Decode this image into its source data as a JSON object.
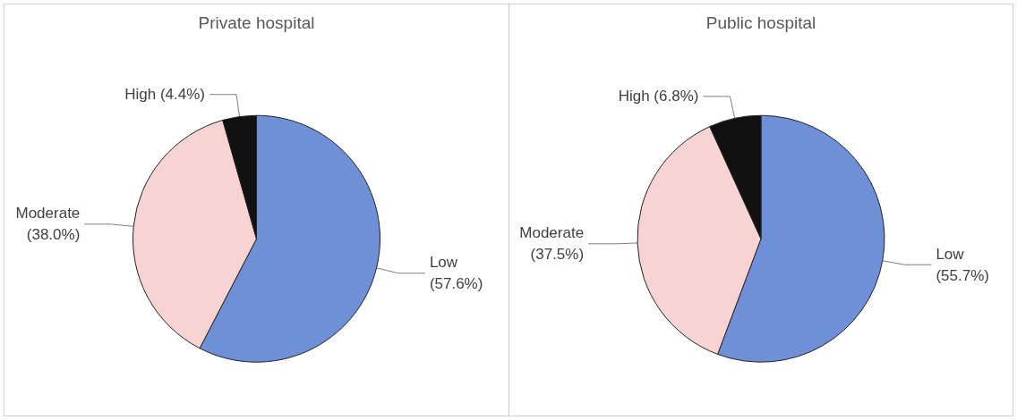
{
  "chart_data": [
    {
      "type": "pie",
      "title": "Private hospital",
      "categories": [
        "Low",
        "Moderate",
        "High"
      ],
      "values": [
        57.6,
        38.0,
        4.4
      ],
      "value_labels": [
        "(57.6%)",
        "(38.0%)",
        "(4.4%)"
      ],
      "colors": [
        "#6f8fd6",
        "#f8d3d3",
        "#111111"
      ],
      "legend": false
    },
    {
      "type": "pie",
      "title": "Public hospital",
      "categories": [
        "Low",
        "Moderate",
        "High"
      ],
      "values": [
        55.7,
        37.5,
        6.8
      ],
      "value_labels": [
        "(55.7%)",
        "(37.5%)",
        "(6.8%)"
      ],
      "colors": [
        "#6f8fd6",
        "#f8d3d3",
        "#111111"
      ],
      "legend": false
    }
  ]
}
